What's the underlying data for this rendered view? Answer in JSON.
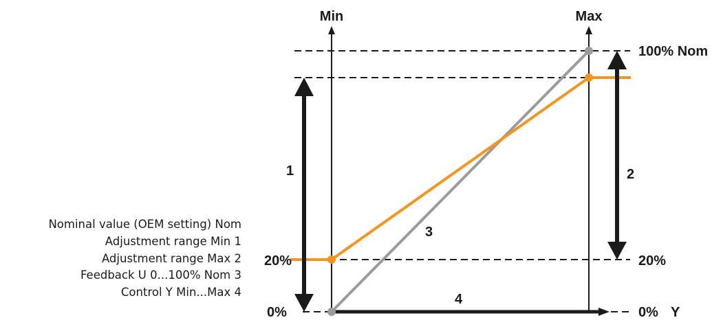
{
  "axes": {
    "min_label": "Min",
    "max_label": "Max",
    "y_label": "Y"
  },
  "levels": {
    "nom_100": "100% Nom",
    "pct_20_left": "20%",
    "pct_20_right": "20%",
    "pct_0_left": "0%",
    "pct_0_right": "0%"
  },
  "markers": {
    "m1": "1",
    "m2": "2",
    "m3": "3",
    "m4": "4"
  },
  "legend": [
    "Nominal value (OEM setting) Nom",
    "Adjustment range Min 1",
    "Adjustment range Max 2",
    "Feedback U 0...100% Nom 3",
    "Control Y Min...Max 4"
  ],
  "colors": {
    "orange": "#f7941d",
    "gray": "#9b9b9b",
    "dark": "#1a1a1a"
  }
}
